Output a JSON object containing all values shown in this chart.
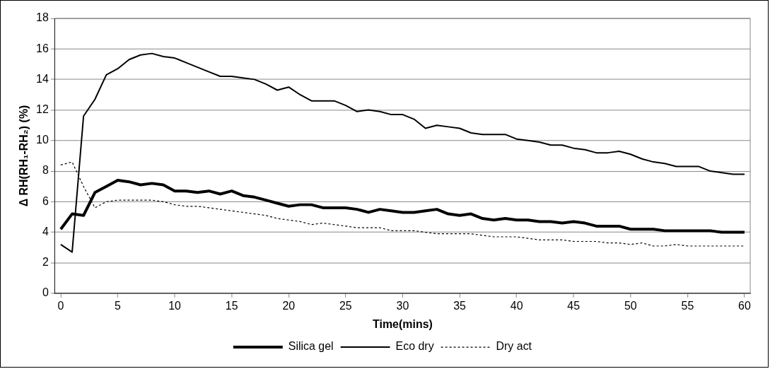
{
  "chart_data": {
    "type": "line",
    "xlabel": "Time(mins)",
    "ylabel": "Δ RH(RH₁-RH₂) (%)",
    "x": [
      0,
      1,
      2,
      3,
      4,
      5,
      6,
      7,
      8,
      9,
      10,
      11,
      12,
      13,
      14,
      15,
      16,
      17,
      18,
      19,
      20,
      21,
      22,
      23,
      24,
      25,
      26,
      27,
      28,
      29,
      30,
      31,
      32,
      33,
      34,
      35,
      36,
      37,
      38,
      39,
      40,
      41,
      42,
      43,
      44,
      45,
      46,
      47,
      48,
      49,
      50,
      51,
      52,
      53,
      54,
      55,
      56,
      57,
      58,
      59,
      60
    ],
    "xlim": [
      -0.5,
      60.5
    ],
    "xticks": [
      0,
      5,
      10,
      15,
      20,
      25,
      30,
      35,
      40,
      45,
      50,
      55,
      60
    ],
    "ylim": [
      0,
      18
    ],
    "yticks": [
      0,
      2,
      4,
      6,
      8,
      10,
      12,
      14,
      16,
      18
    ],
    "grid": "y",
    "legend": "bottom",
    "marker": "none",
    "series": [
      {
        "name": "Silica gel",
        "color": "#000000",
        "line_style": "solid",
        "values": [
          4.2,
          5.2,
          5.1,
          6.6,
          7.0,
          7.4,
          7.3,
          7.1,
          7.2,
          7.1,
          6.7,
          6.7,
          6.6,
          6.7,
          6.5,
          6.7,
          6.4,
          6.3,
          6.1,
          5.9,
          5.7,
          5.8,
          5.8,
          5.6,
          5.6,
          5.6,
          5.5,
          5.3,
          5.5,
          5.4,
          5.3,
          5.3,
          5.4,
          5.5,
          5.2,
          5.1,
          5.2,
          4.9,
          4.8,
          4.9,
          4.8,
          4.8,
          4.7,
          4.7,
          4.6,
          4.7,
          4.6,
          4.4,
          4.4,
          4.4,
          4.2,
          4.2,
          4.2,
          4.1,
          4.1,
          4.1,
          4.1,
          4.1,
          4.0,
          4.0,
          4.0
        ]
      },
      {
        "name": "Eco dry",
        "color": "#000000",
        "line_style": "solid",
        "values": [
          3.2,
          2.7,
          11.6,
          12.7,
          14.3,
          14.7,
          15.3,
          15.6,
          15.7,
          15.5,
          15.4,
          15.1,
          14.8,
          14.5,
          14.2,
          14.2,
          14.1,
          14.0,
          13.7,
          13.3,
          13.5,
          13.0,
          12.6,
          12.6,
          12.6,
          12.3,
          11.9,
          12.0,
          11.9,
          11.7,
          11.7,
          11.4,
          10.8,
          11.0,
          10.9,
          10.8,
          10.5,
          10.4,
          10.4,
          10.4,
          10.1,
          10.0,
          9.9,
          9.7,
          9.7,
          9.5,
          9.4,
          9.2,
          9.2,
          9.3,
          9.1,
          8.8,
          8.6,
          8.5,
          8.3,
          8.3,
          8.3,
          8.0,
          7.9,
          7.8,
          7.8
        ]
      },
      {
        "name": "Dry act",
        "color": "#000000",
        "line_style": "dotted",
        "values": [
          8.4,
          8.6,
          7.0,
          5.6,
          6.0,
          6.1,
          6.1,
          6.1,
          6.1,
          6.0,
          5.8,
          5.7,
          5.7,
          5.6,
          5.5,
          5.4,
          5.3,
          5.2,
          5.1,
          4.9,
          4.8,
          4.7,
          4.5,
          4.6,
          4.5,
          4.4,
          4.3,
          4.3,
          4.3,
          4.1,
          4.1,
          4.1,
          4.0,
          3.9,
          3.9,
          3.9,
          3.9,
          3.8,
          3.7,
          3.7,
          3.7,
          3.6,
          3.5,
          3.5,
          3.5,
          3.4,
          3.4,
          3.4,
          3.3,
          3.3,
          3.2,
          3.3,
          3.1,
          3.1,
          3.2,
          3.1,
          3.1,
          3.1,
          3.1,
          3.1,
          3.1
        ]
      }
    ]
  }
}
